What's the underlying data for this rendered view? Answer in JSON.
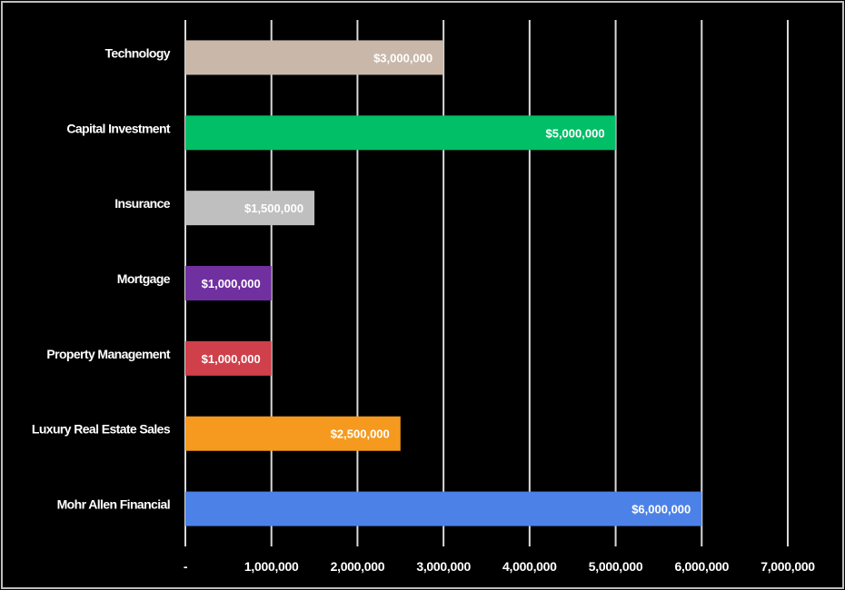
{
  "chart_data": {
    "type": "bar",
    "orientation": "horizontal",
    "title": "",
    "xlabel": "",
    "ylabel": "",
    "categories": [
      "Technology",
      "Capital Investment",
      "Insurance",
      "Mortgage",
      "Property Management",
      "Luxury Real Estate Sales",
      "Mohr Allen Financial"
    ],
    "values": [
      3000000,
      5000000,
      1500000,
      1000000,
      1000000,
      2500000,
      6000000
    ],
    "data_labels": [
      "$3,000,000",
      "$5,000,000",
      "$1,500,000",
      "$1,000,000",
      "$1,000,000",
      "$2,500,000",
      "$6,000,000"
    ],
    "colors": [
      "#c9b8aa",
      "#00bf66",
      "#bfbfbf",
      "#7030a0",
      "#d0404a",
      "#f59a1e",
      "#4c82e8"
    ],
    "xlim": [
      0,
      7000000
    ],
    "x_ticks": [
      0,
      1000000,
      2000000,
      3000000,
      4000000,
      5000000,
      6000000,
      7000000
    ],
    "x_tick_labels": [
      "-",
      "1,000,000",
      "2,000,000",
      "3,000,000",
      "4,000,000",
      "5,000,000",
      "6,000,000",
      "7,000,000"
    ],
    "grid": true,
    "gridline_color": "#d9d9d9",
    "background": "#000000",
    "legend": "none"
  }
}
